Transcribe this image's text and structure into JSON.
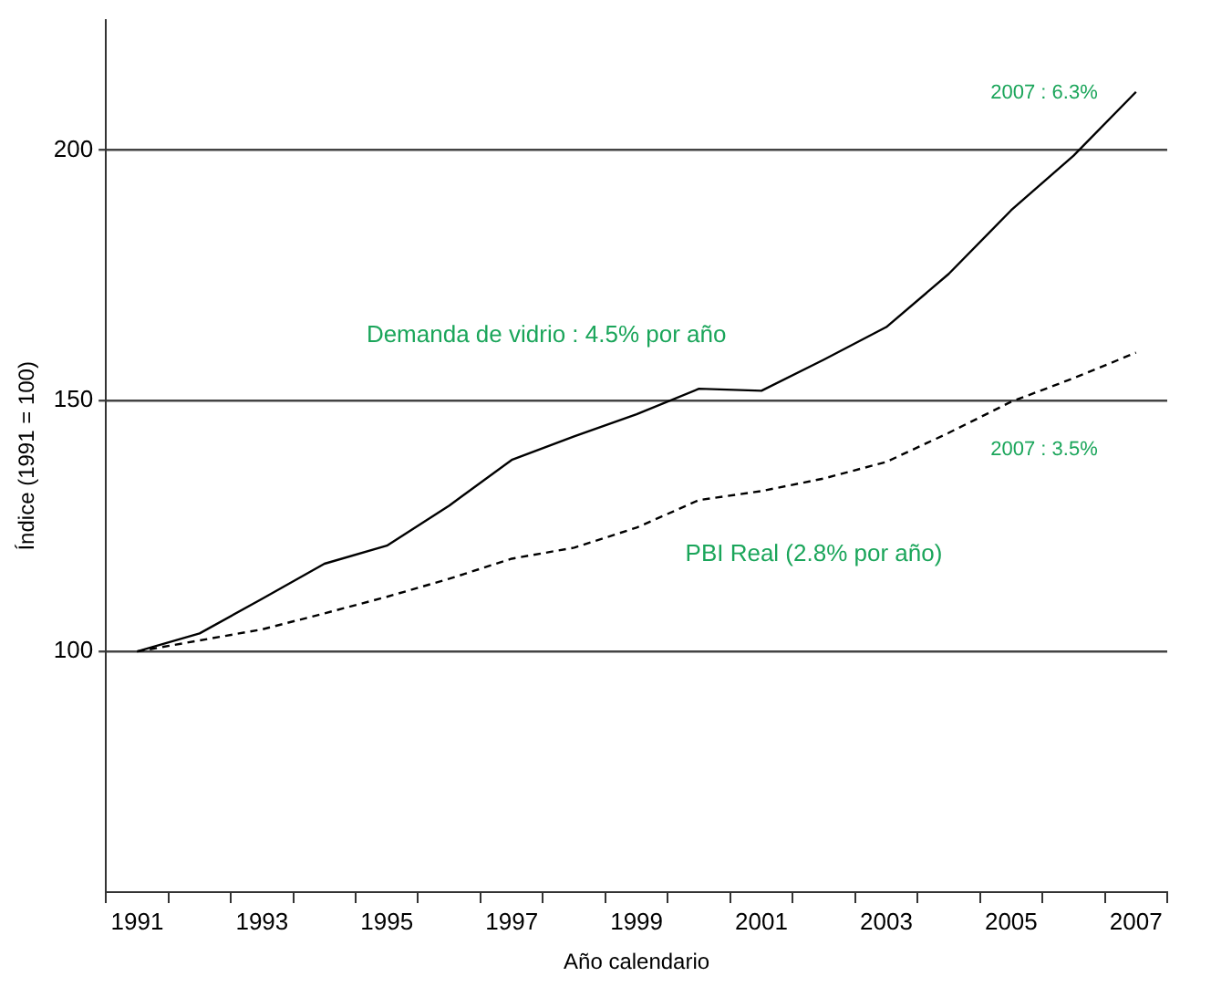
{
  "chart_data": {
    "type": "line",
    "xlabel": "Año calendario",
    "ylabel": "Índice (1991 = 100)",
    "categories": [
      "1991",
      null,
      "1993",
      null,
      "1995",
      null,
      "1997",
      null,
      "1999",
      null,
      "2001",
      null,
      "2003",
      null,
      "2005",
      null,
      "2007"
    ],
    "series": [
      {
        "color": "#000000",
        "line_style": "solid",
        "values": [
          100,
          103.6,
          110.5,
          117.5,
          121.1,
          129.1,
          138.2,
          142.9,
          147.3,
          152.4,
          152.0,
          158.2,
          164.7,
          175.3,
          188.0,
          198.9,
          211.6
        ]
      },
      {
        "color": "#000000",
        "line_style": "dashed",
        "values": [
          100,
          102.2,
          104.4,
          107.6,
          110.9,
          114.5,
          118.5,
          120.7,
          124.7,
          130.2,
          132.0,
          134.5,
          137.8,
          143.6,
          149.8,
          154.5,
          159.6
        ]
      }
    ],
    "ylim": [
      52,
      226
    ],
    "yticks": [
      100,
      150,
      200
    ],
    "grid": "y",
    "legend": false,
    "marker": "none",
    "annotations": [
      "Demanda de vidrio : 4.5% por año",
      "2007 : 6.3%",
      "2007 : 3.5%",
      "PBI Real (2.8% por año)"
    ]
  }
}
